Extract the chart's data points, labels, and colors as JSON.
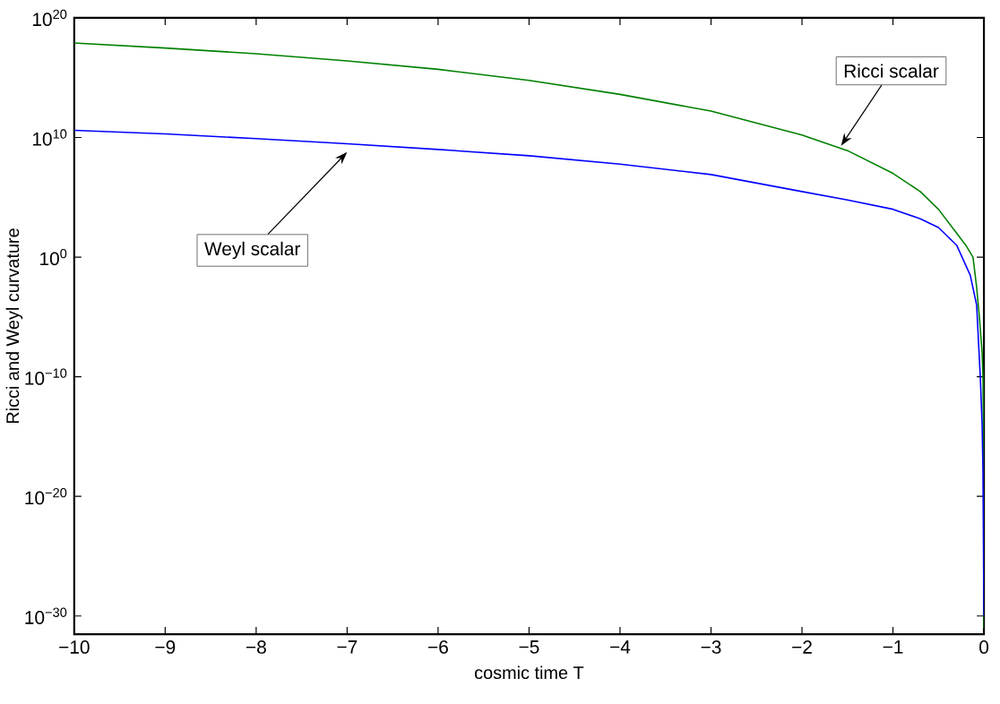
{
  "chart_data": {
    "type": "line",
    "xlabel": "cosmic time T",
    "ylabel": "Ricci and Weyl curvature",
    "log": "y",
    "grid": false,
    "marker": "none",
    "line_style": "solid",
    "xlim": [
      -10,
      0
    ],
    "ylim": [
      3e-32,
      1e+20
    ],
    "xticks": [
      {
        "value": -10,
        "label": "−10"
      },
      {
        "value": -9,
        "label": "−9"
      },
      {
        "value": -8,
        "label": "−8"
      },
      {
        "value": -7,
        "label": "−7"
      },
      {
        "value": -6,
        "label": "−6"
      },
      {
        "value": -5,
        "label": "−5"
      },
      {
        "value": -4,
        "label": "−4"
      },
      {
        "value": -3,
        "label": "−3"
      },
      {
        "value": -2,
        "label": "−2"
      },
      {
        "value": -1,
        "label": "−1"
      },
      0
    ],
    "yticks": [
      {
        "value": 1e-30,
        "label": "10$^{−30}$"
      },
      {
        "value": 1e-20,
        "label": "10$^{−20}$"
      },
      {
        "value": 1e-10,
        "label": "10$^{−10}$"
      },
      {
        "value": 1,
        "label": "10$^{0}$"
      },
      {
        "value": 10000000000.0,
        "label": "10$^{10}$"
      },
      {
        "value": 1e+20,
        "label": "10$^{20}$"
      }
    ],
    "series": [
      {
        "color": "#008000",
        "x": [
          -10,
          -9,
          -8,
          -7,
          -6,
          -5,
          -4,
          -3,
          -2,
          -1.5,
          -1,
          -0.7,
          -0.5,
          -0.3,
          -0.2,
          -0.12,
          -0.08,
          -0.05,
          -0.02,
          -0.01,
          -0.005,
          0
        ],
        "values": [
          8e+17,
          3e+17,
          1e+17,
          2.5e+16,
          5000000000000000.0,
          600000000000000.0,
          40000000000000.0,
          1600000000000.0,
          16000000000.0,
          800000000.0,
          10000000.0,
          300000.0,
          10000.0,
          100,
          10,
          1,
          0.003,
          1e-05,
          1e-08,
          1e-10,
          1e-15,
          1e-31
        ]
      },
      {
        "color": "#0000ff",
        "x": [
          -10,
          -9,
          -8,
          -7,
          -6,
          -5,
          -4,
          -3,
          -2,
          -1.5,
          -1,
          -0.7,
          -0.5,
          -0.3,
          -0.24,
          -0.15,
          -0.08,
          -0.04,
          -0.02,
          -0.01,
          0
        ],
        "values": [
          40000000000.0,
          20000000000.0,
          8000000000.0,
          3000000000.0,
          1000000000.0,
          300000000.0,
          60000000.0,
          8000000.0,
          300000.0,
          60000.0,
          10000.0,
          1600.0,
          300,
          10,
          1,
          0.03,
          0.0001,
          1e-10,
          1e-14,
          1e-18,
          1e-30
        ]
      }
    ],
    "annotations": [
      {
        "text": "Ricci scalar",
        "x": -1.57,
        "y": 2000000000.0
      },
      {
        "text": "Weyl scalar",
        "x": -7,
        "y": 600000000.0
      }
    ]
  }
}
